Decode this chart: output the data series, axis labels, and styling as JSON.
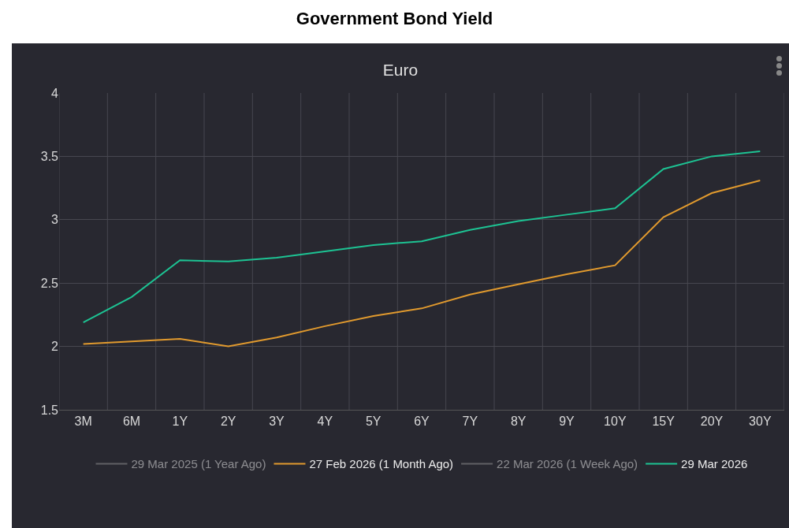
{
  "chart_data": {
    "type": "line",
    "title": "Government Bond Yield",
    "subtitle": "Euro",
    "categories": [
      "3M",
      "6M",
      "1Y",
      "2Y",
      "3Y",
      "4Y",
      "5Y",
      "6Y",
      "7Y",
      "8Y",
      "9Y",
      "10Y",
      "15Y",
      "20Y",
      "30Y"
    ],
    "series": [
      {
        "name": "29 Mar 2025 (1 Year Ago)",
        "color": "#9a9a9a",
        "values": [
          null,
          null,
          null,
          null,
          null,
          null,
          null,
          null,
          null,
          null,
          null,
          null,
          null,
          null,
          null
        ]
      },
      {
        "name": "27 Feb 2026 (1 Month Ago)",
        "color": "#e19a2e",
        "values": [
          2.02,
          2.04,
          2.06,
          2.0,
          2.07,
          2.16,
          2.24,
          2.3,
          2.41,
          2.49,
          2.57,
          2.64,
          3.02,
          3.21,
          3.31
        ]
      },
      {
        "name": "22 Mar 2026 (1 Week Ago)",
        "color": "#9a9a9a",
        "values": [
          null,
          null,
          null,
          null,
          null,
          null,
          null,
          null,
          null,
          null,
          null,
          null,
          null,
          null,
          null
        ]
      },
      {
        "name": "29 Mar 2026",
        "color": "#1dc393",
        "values": [
          2.19,
          2.39,
          2.68,
          2.67,
          2.7,
          2.75,
          2.8,
          2.83,
          2.92,
          2.99,
          3.04,
          3.09,
          3.4,
          3.5,
          3.54
        ]
      }
    ],
    "ylim": [
      1.5,
      4
    ],
    "yticks": [
      1.5,
      2,
      2.5,
      3,
      3.5,
      4
    ],
    "grid": true,
    "legend": "bottom",
    "marker": "none",
    "line_style": "solid"
  }
}
